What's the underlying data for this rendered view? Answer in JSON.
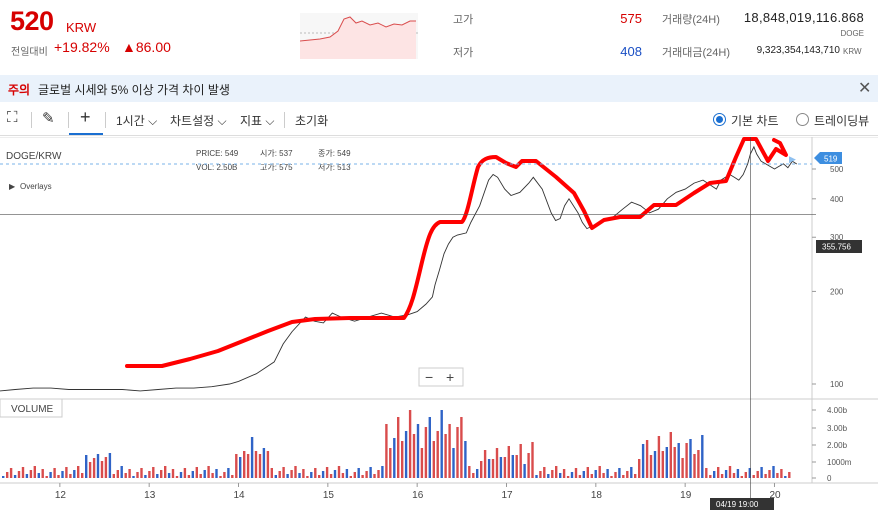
{
  "header": {
    "price": "520",
    "currency": "KRW",
    "change_label": "전일대비",
    "change_pct": "+19.82%",
    "change_amt": "▲86.00",
    "high_label": "고가",
    "high_value": "575",
    "low_label": "저가",
    "low_value": "408",
    "volume_label": "거래량(24H)",
    "volume_value": "18,848,019,116.868",
    "volume_unit": "DOGE",
    "amount_label": "거래대금(24H)",
    "amount_value": "9,323,354,143,710",
    "amount_unit": "KRW"
  },
  "alert": {
    "tag": "주의",
    "message": "글로벌 시세와 5% 이상 가격 차이 발생",
    "close_icon": "close-icon"
  },
  "toolbar": {
    "interval": "1시간",
    "settings": "차트설정",
    "indicators": "지표",
    "reset": "초기화",
    "view_basic": "기본 차트",
    "view_tv": "트레이딩뷰",
    "selected_view": "기본 차트"
  },
  "chart_data": {
    "type": "line",
    "symbol": "DOGE/KRW",
    "overlays_label": "Overlays",
    "volume_label": "VOLUME",
    "legend": {
      "price": "PRICE: 549",
      "open": "시가: 537",
      "high": "종가: 549",
      "vol": "VOL: 2.50B",
      "hi": "고가: 575",
      "lo": "저가: 513"
    },
    "x_ticks": [
      "12",
      "13",
      "14",
      "15",
      "16",
      "17",
      "18",
      "19",
      "20"
    ],
    "x_day_start": 11.33,
    "x_day_end": 20.42,
    "y_ticks": [
      100,
      200,
      300,
      400,
      500
    ],
    "y_scale": "log",
    "current_price": "519",
    "crosshair_price": "355.756",
    "crosshair_time": "04/19 19:00",
    "vol_ticks": [
      "4.00b",
      "3.00b",
      "2.00b",
      "1000m",
      "0"
    ],
    "colors": {
      "up": "#d94c4c",
      "down": "#2f63c7",
      "annotation": "#ff0000",
      "price_line": "#333333",
      "current": "#3d8ee0"
    },
    "series": [
      {
        "x": [
          11.33,
          11.5,
          11.7,
          11.9,
          12.1,
          12.3,
          12.5,
          12.7,
          12.9,
          13.1,
          13.3,
          13.5,
          13.7,
          13.9,
          14.0,
          14.2,
          14.4,
          14.5,
          14.6,
          14.75,
          14.85,
          14.95,
          15.05,
          15.15,
          15.3,
          15.45,
          15.6,
          15.75,
          15.9,
          16.0,
          16.1,
          16.17,
          16.2,
          16.25,
          16.3,
          16.35,
          16.4,
          16.45,
          16.55,
          16.6,
          16.7,
          16.8,
          16.85,
          16.9,
          16.98,
          17.05,
          17.15,
          17.25,
          17.3,
          17.4,
          17.5,
          17.55,
          17.6,
          17.65,
          17.7,
          17.8,
          17.85,
          17.9,
          18.0,
          18.1,
          18.2,
          18.3,
          18.4,
          18.5,
          18.55,
          18.6,
          18.7,
          18.8,
          18.9,
          19.0,
          19.1,
          19.2,
          19.3,
          19.35,
          19.4,
          19.5,
          19.55,
          19.6,
          19.65,
          19.7,
          19.73,
          19.77,
          19.8,
          19.85,
          19.9,
          20.0,
          20.05,
          20.1,
          20.15,
          20.2,
          20.25
        ],
        "y": [
          95,
          96,
          97,
          97,
          96,
          96,
          96,
          96,
          95,
          96,
          97,
          97,
          98,
          100,
          102,
          108,
          118,
          135,
          148,
          165,
          160,
          158,
          170,
          165,
          160,
          165,
          170,
          165,
          168,
          172,
          182,
          192,
          210,
          235,
          265,
          285,
          300,
          305,
          310,
          335,
          380,
          460,
          480,
          470,
          430,
          410,
          420,
          450,
          470,
          430,
          360,
          340,
          345,
          380,
          400,
          360,
          335,
          320,
          330,
          340,
          350,
          370,
          390,
          380,
          370,
          360,
          370,
          400,
          420,
          430,
          450,
          460,
          440,
          430,
          460,
          480,
          470,
          460,
          480,
          520,
          560,
          590,
          560,
          530,
          520,
          500,
          510,
          520,
          505,
          530,
          519
        ]
      }
    ]
  }
}
